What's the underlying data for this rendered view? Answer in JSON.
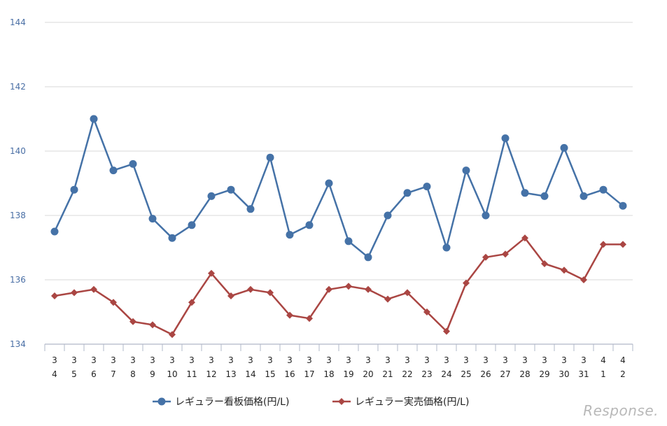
{
  "chart_data": {
    "type": "line",
    "categories": [
      [
        "3",
        "4"
      ],
      [
        "3",
        "5"
      ],
      [
        "3",
        "6"
      ],
      [
        "3",
        "7"
      ],
      [
        "3",
        "8"
      ],
      [
        "3",
        "9"
      ],
      [
        "3",
        "10"
      ],
      [
        "3",
        "11"
      ],
      [
        "3",
        "12"
      ],
      [
        "3",
        "13"
      ],
      [
        "3",
        "14"
      ],
      [
        "3",
        "15"
      ],
      [
        "3",
        "16"
      ],
      [
        "3",
        "17"
      ],
      [
        "3",
        "18"
      ],
      [
        "3",
        "19"
      ],
      [
        "3",
        "20"
      ],
      [
        "3",
        "21"
      ],
      [
        "3",
        "22"
      ],
      [
        "3",
        "23"
      ],
      [
        "3",
        "24"
      ],
      [
        "3",
        "25"
      ],
      [
        "3",
        "26"
      ],
      [
        "3",
        "27"
      ],
      [
        "3",
        "28"
      ],
      [
        "3",
        "29"
      ],
      [
        "3",
        "30"
      ],
      [
        "3",
        "31"
      ],
      [
        "4",
        "1"
      ],
      [
        "4",
        "2"
      ]
    ],
    "yticks": [
      "134",
      "136",
      "138",
      "140",
      "142",
      "144"
    ],
    "ylim": [
      134,
      144
    ],
    "grid": true,
    "legend_position": "bottom",
    "series": [
      {
        "name": "レギュラー看板価格(円/L)",
        "color": "#4572a7",
        "marker": "circle",
        "values": [
          137.5,
          138.8,
          141.0,
          139.4,
          139.6,
          137.9,
          137.3,
          137.7,
          138.6,
          138.8,
          138.2,
          139.8,
          137.4,
          137.7,
          139.0,
          137.2,
          136.7,
          138.0,
          138.7,
          138.9,
          137.0,
          139.4,
          138.0,
          140.4,
          138.7,
          138.6,
          140.1,
          138.6,
          138.8,
          138.3
        ]
      },
      {
        "name": "レギュラー実売価格(円/L)",
        "color": "#aa4643",
        "marker": "diamond",
        "values": [
          135.5,
          135.6,
          135.7,
          135.3,
          134.7,
          134.6,
          134.3,
          135.3,
          136.2,
          135.5,
          135.7,
          135.6,
          134.9,
          134.8,
          135.7,
          135.8,
          135.7,
          135.4,
          135.6,
          135.0,
          134.4,
          135.9,
          136.7,
          136.8,
          137.3,
          136.5,
          136.3,
          136.0,
          137.1,
          137.1
        ]
      }
    ]
  },
  "watermark": "Response."
}
